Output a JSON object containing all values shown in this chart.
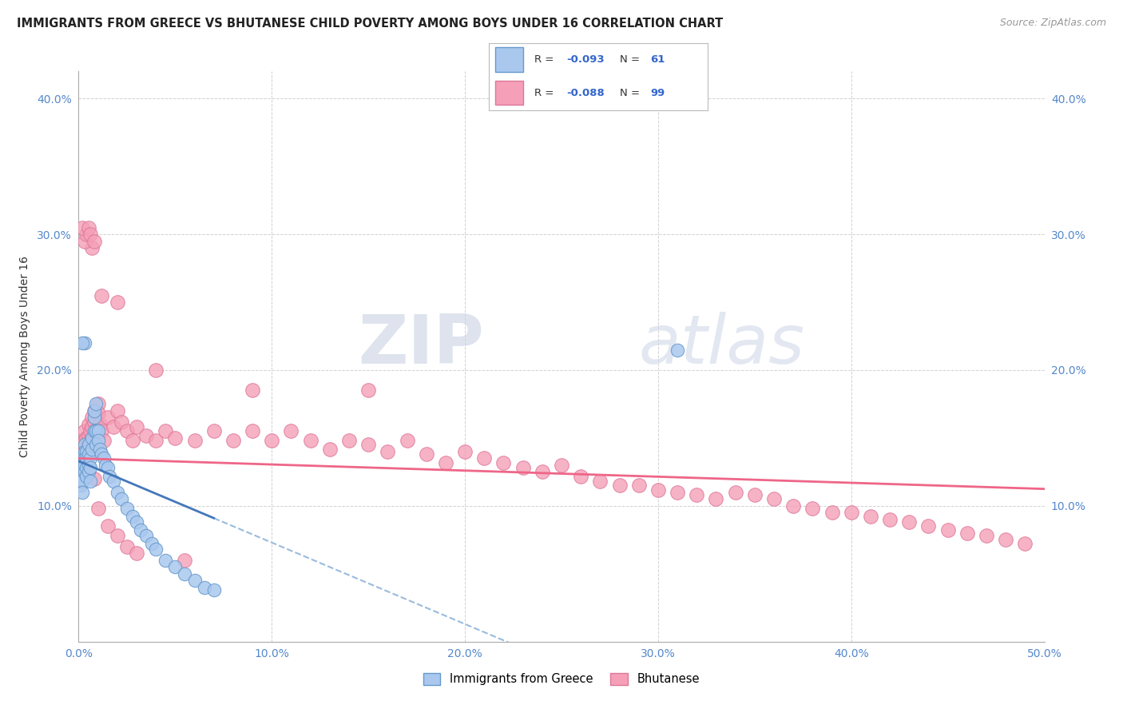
{
  "title": "IMMIGRANTS FROM GREECE VS BHUTANESE CHILD POVERTY AMONG BOYS UNDER 16 CORRELATION CHART",
  "source": "Source: ZipAtlas.com",
  "ylabel": "Child Poverty Among Boys Under 16",
  "xlim": [
    0.0,
    0.5
  ],
  "ylim": [
    0.0,
    0.42
  ],
  "xticks": [
    0.0,
    0.1,
    0.2,
    0.3,
    0.4,
    0.5
  ],
  "yticks": [
    0.0,
    0.1,
    0.2,
    0.3,
    0.4
  ],
  "xtick_labels": [
    "0.0%",
    "10.0%",
    "20.0%",
    "30.0%",
    "40.0%",
    "50.0%"
  ],
  "ytick_labels": [
    "",
    "10.0%",
    "20.0%",
    "30.0%",
    "40.0%"
  ],
  "grid_color": "#cccccc",
  "watermark_zip": "ZIP",
  "watermark_atlas": "atlas",
  "series1_color": "#aac8ee",
  "series2_color": "#f5a0b8",
  "series1_edge": "#6699cc",
  "series2_edge": "#dd7799",
  "trend1_color": "#4477bb",
  "trend2_color": "#ee6688",
  "trend1_dash_color": "#99bbdd",
  "series1_x": [
    0.001,
    0.001,
    0.001,
    0.001,
    0.002,
    0.002,
    0.002,
    0.002,
    0.002,
    0.002,
    0.003,
    0.003,
    0.003,
    0.003,
    0.003,
    0.004,
    0.004,
    0.004,
    0.004,
    0.005,
    0.005,
    0.005,
    0.005,
    0.006,
    0.006,
    0.006,
    0.007,
    0.007,
    0.008,
    0.008,
    0.009,
    0.009,
    0.01,
    0.01,
    0.011,
    0.012,
    0.013,
    0.014,
    0.015,
    0.016,
    0.018,
    0.02,
    0.022,
    0.025,
    0.028,
    0.03,
    0.032,
    0.035,
    0.038,
    0.04,
    0.045,
    0.05,
    0.055,
    0.06,
    0.065,
    0.07,
    0.008,
    0.009,
    0.003,
    0.002,
    0.31
  ],
  "series1_y": [
    0.13,
    0.125,
    0.12,
    0.115,
    0.135,
    0.13,
    0.128,
    0.12,
    0.118,
    0.11,
    0.145,
    0.14,
    0.135,
    0.13,
    0.125,
    0.14,
    0.135,
    0.128,
    0.122,
    0.145,
    0.138,
    0.13,
    0.125,
    0.135,
    0.128,
    0.118,
    0.15,
    0.142,
    0.165,
    0.155,
    0.155,
    0.145,
    0.155,
    0.148,
    0.142,
    0.138,
    0.135,
    0.13,
    0.128,
    0.122,
    0.118,
    0.11,
    0.105,
    0.098,
    0.092,
    0.088,
    0.082,
    0.078,
    0.072,
    0.068,
    0.06,
    0.055,
    0.05,
    0.045,
    0.04,
    0.038,
    0.17,
    0.175,
    0.22,
    0.22,
    0.215
  ],
  "series2_x": [
    0.001,
    0.001,
    0.002,
    0.002,
    0.002,
    0.003,
    0.003,
    0.003,
    0.004,
    0.004,
    0.005,
    0.005,
    0.005,
    0.006,
    0.006,
    0.007,
    0.007,
    0.008,
    0.008,
    0.009,
    0.01,
    0.01,
    0.011,
    0.012,
    0.013,
    0.015,
    0.018,
    0.02,
    0.022,
    0.025,
    0.028,
    0.03,
    0.035,
    0.04,
    0.045,
    0.05,
    0.06,
    0.07,
    0.08,
    0.09,
    0.1,
    0.11,
    0.12,
    0.13,
    0.14,
    0.15,
    0.16,
    0.17,
    0.18,
    0.19,
    0.2,
    0.21,
    0.22,
    0.23,
    0.24,
    0.25,
    0.26,
    0.27,
    0.28,
    0.29,
    0.3,
    0.31,
    0.32,
    0.33,
    0.34,
    0.35,
    0.36,
    0.37,
    0.38,
    0.39,
    0.4,
    0.41,
    0.42,
    0.43,
    0.44,
    0.45,
    0.46,
    0.47,
    0.48,
    0.49,
    0.008,
    0.01,
    0.015,
    0.02,
    0.025,
    0.03,
    0.055,
    0.007,
    0.003,
    0.004,
    0.002,
    0.005,
    0.006,
    0.008,
    0.012,
    0.02,
    0.04,
    0.09,
    0.15
  ],
  "series2_y": [
    0.135,
    0.125,
    0.145,
    0.138,
    0.128,
    0.155,
    0.148,
    0.14,
    0.15,
    0.142,
    0.16,
    0.152,
    0.145,
    0.155,
    0.148,
    0.165,
    0.158,
    0.17,
    0.162,
    0.155,
    0.175,
    0.168,
    0.16,
    0.155,
    0.148,
    0.165,
    0.158,
    0.17,
    0.162,
    0.155,
    0.148,
    0.158,
    0.152,
    0.148,
    0.155,
    0.15,
    0.148,
    0.155,
    0.148,
    0.155,
    0.148,
    0.155,
    0.148,
    0.142,
    0.148,
    0.145,
    0.14,
    0.148,
    0.138,
    0.132,
    0.14,
    0.135,
    0.132,
    0.128,
    0.125,
    0.13,
    0.122,
    0.118,
    0.115,
    0.115,
    0.112,
    0.11,
    0.108,
    0.105,
    0.11,
    0.108,
    0.105,
    0.1,
    0.098,
    0.095,
    0.095,
    0.092,
    0.09,
    0.088,
    0.085,
    0.082,
    0.08,
    0.078,
    0.075,
    0.072,
    0.12,
    0.098,
    0.085,
    0.078,
    0.07,
    0.065,
    0.06,
    0.29,
    0.295,
    0.3,
    0.305,
    0.305,
    0.3,
    0.295,
    0.255,
    0.25,
    0.2,
    0.185,
    0.185
  ]
}
